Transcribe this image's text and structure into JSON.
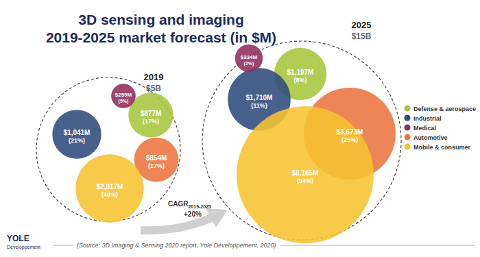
{
  "chart_data": {
    "type": "bubble",
    "title": "3D sensing and imaging",
    "subtitle": "2019-2025 market forecast (in $M)",
    "categories": [
      "2019",
      "2025"
    ],
    "totals": [
      5000,
      15000
    ],
    "total_labels": [
      "$5B",
      "$15B"
    ],
    "series": [
      {
        "name": "Defense & aerospace",
        "color": "#a6c63c",
        "values": [
          877,
          1197
        ],
        "value_labels": [
          "$877M",
          "$1,197M"
        ],
        "shares": [
          17,
          8
        ],
        "share_labels": [
          "(17%)",
          "(8%)"
        ]
      },
      {
        "name": "Industrial",
        "color": "#2f4b7c",
        "values": [
          1041,
          1710
        ],
        "value_labels": [
          "$1,041M",
          "$1,710M"
        ],
        "shares": [
          21,
          11
        ],
        "share_labels": [
          "(21%)",
          "(11%)"
        ]
      },
      {
        "name": "Medical",
        "color": "#8e2c5c",
        "values": [
          259,
          334
        ],
        "value_labels": [
          "$259M",
          "$334M"
        ],
        "shares": [
          5,
          2
        ],
        "share_labels": [
          "(5%)",
          "(2%)"
        ]
      },
      {
        "name": "Automotive",
        "color": "#ea7440",
        "values": [
          854,
          3673
        ],
        "value_labels": [
          "$854M",
          "$3,673M"
        ],
        "shares": [
          17,
          25
        ],
        "share_labels": [
          "(17%)",
          "(25%)"
        ]
      },
      {
        "name": "Mobile & consumer",
        "color": "#f7c331",
        "values": [
          2017,
          8165
        ],
        "value_labels": [
          "$2,017M",
          "$8,165M"
        ],
        "shares": [
          40,
          54
        ],
        "share_labels": [
          "(40%)",
          "(54%)"
        ]
      }
    ],
    "annotations": [
      {
        "text": "CAGR",
        "subscript": "2019-2025",
        "value": 20,
        "label": "+20%"
      }
    ],
    "source": "(Source: 3D Imaging & Sensing 2020 report, Yole Développement, 2020)",
    "logo": [
      "YOLE",
      "Développement"
    ],
    "legend": "right",
    "data_labels": true
  }
}
